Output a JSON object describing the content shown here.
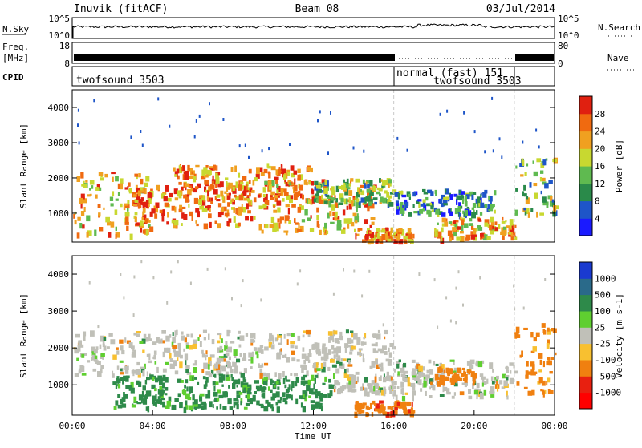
{
  "header": {
    "title": "Inuvik (fitACF)",
    "beam": "Beam 08",
    "date": "03/Jul/2014"
  },
  "nsky_panel": {
    "left_label": "N.Sky",
    "right_label": "N.Search",
    "left_ticks": [
      "10^5",
      "10^0"
    ],
    "right_ticks": [
      "10^5",
      "10^0"
    ]
  },
  "freq_panel": {
    "left_label_1": "Freq.",
    "left_label_2": "[MHz]",
    "right_label": "Nave",
    "left_ticks": [
      "18",
      "8"
    ],
    "right_ticks": [
      "80",
      "0"
    ]
  },
  "cpid_panel": {
    "label": "CPID",
    "modes": [
      {
        "name": "twofsound 3503",
        "start_hour": 0,
        "end_hour": 16
      },
      {
        "name": "normal (fast) 151",
        "start_hour": 16,
        "end_hour": 22
      },
      {
        "name": "twofsound 3503",
        "start_hour": 22,
        "end_hour": 24
      }
    ]
  },
  "chart_data": [
    {
      "type": "heatmap",
      "title": "Power",
      "ylabel": "Slant Range [km]",
      "xlabel": "",
      "ylim": [
        180,
        4500
      ],
      "xlim_hours": [
        0,
        24
      ],
      "yticks": [
        1000,
        2000,
        3000,
        4000
      ],
      "colorbar": {
        "label": "Power [dB]",
        "ticks": [
          4,
          8,
          12,
          16,
          20,
          24,
          28
        ],
        "colors": [
          "#1a1aff",
          "#1e55c8",
          "#2a8a4a",
          "#5fba50",
          "#c8d830",
          "#f0a020",
          "#f06a10",
          "#e02010"
        ]
      },
      "echo_regions": [
        {
          "t0": 0,
          "t1": 4,
          "r0": 400,
          "r1": 2200,
          "power": 22
        },
        {
          "t0": 3,
          "t1": 9,
          "r0": 700,
          "r1": 1800,
          "power": 26
        },
        {
          "t0": 5,
          "t1": 12,
          "r0": 1400,
          "r1": 2400,
          "power": 24
        },
        {
          "t0": 9,
          "t1": 15,
          "r0": 500,
          "r1": 2000,
          "power": 22
        },
        {
          "t0": 12,
          "t1": 16,
          "r0": 1300,
          "r1": 2000,
          "power": 14
        },
        {
          "t0": 16,
          "t1": 21,
          "r0": 1000,
          "r1": 1700,
          "power": 10
        },
        {
          "t0": 14,
          "t1": 17,
          "r0": 250,
          "r1": 600,
          "power": 24
        },
        {
          "t0": 18,
          "t1": 22,
          "r0": 300,
          "r1": 900,
          "power": 22
        },
        {
          "t0": 22,
          "t1": 24,
          "r0": 1000,
          "r1": 2600,
          "power": 14
        }
      ]
    },
    {
      "type": "heatmap",
      "title": "Velocity",
      "ylabel": "Slant Range [km]",
      "xlabel": "Time UT",
      "ylim": [
        180,
        4500
      ],
      "xlim_hours": [
        0,
        24
      ],
      "yticks": [
        1000,
        2000,
        3000,
        4000
      ],
      "xticks": [
        "00:00",
        "04:00",
        "08:00",
        "12:00",
        "16:00",
        "20:00",
        "00:00"
      ],
      "colorbar": {
        "label": "Velocity [m s-1]",
        "ticks": [
          1000,
          500,
          100,
          25,
          -25,
          -100,
          -500,
          -1000
        ],
        "colors": [
          "#1a3ad0",
          "#2a6a8a",
          "#2e8a4a",
          "#5fcf30",
          "#c0c0b8",
          "#f8c030",
          "#f08010",
          "#e82010",
          "#ff0000"
        ]
      },
      "echo_regions": [
        {
          "t0": 0,
          "t1": 16,
          "r0": 1300,
          "r1": 2500,
          "velocity": 0
        },
        {
          "t0": 2,
          "t1": 13,
          "r0": 400,
          "r1": 1300,
          "velocity": 200
        },
        {
          "t0": 13,
          "t1": 16,
          "r0": 800,
          "r1": 1300,
          "velocity": 0
        },
        {
          "t0": 14,
          "t1": 17,
          "r0": 250,
          "r1": 600,
          "velocity": -400
        },
        {
          "t0": 16,
          "t1": 22,
          "r0": 700,
          "r1": 1700,
          "velocity": 0
        },
        {
          "t0": 18,
          "t1": 20,
          "r0": 1100,
          "r1": 1500,
          "velocity": -300
        },
        {
          "t0": 22,
          "t1": 24,
          "r0": 800,
          "r1": 2700,
          "velocity": -200
        }
      ]
    }
  ]
}
